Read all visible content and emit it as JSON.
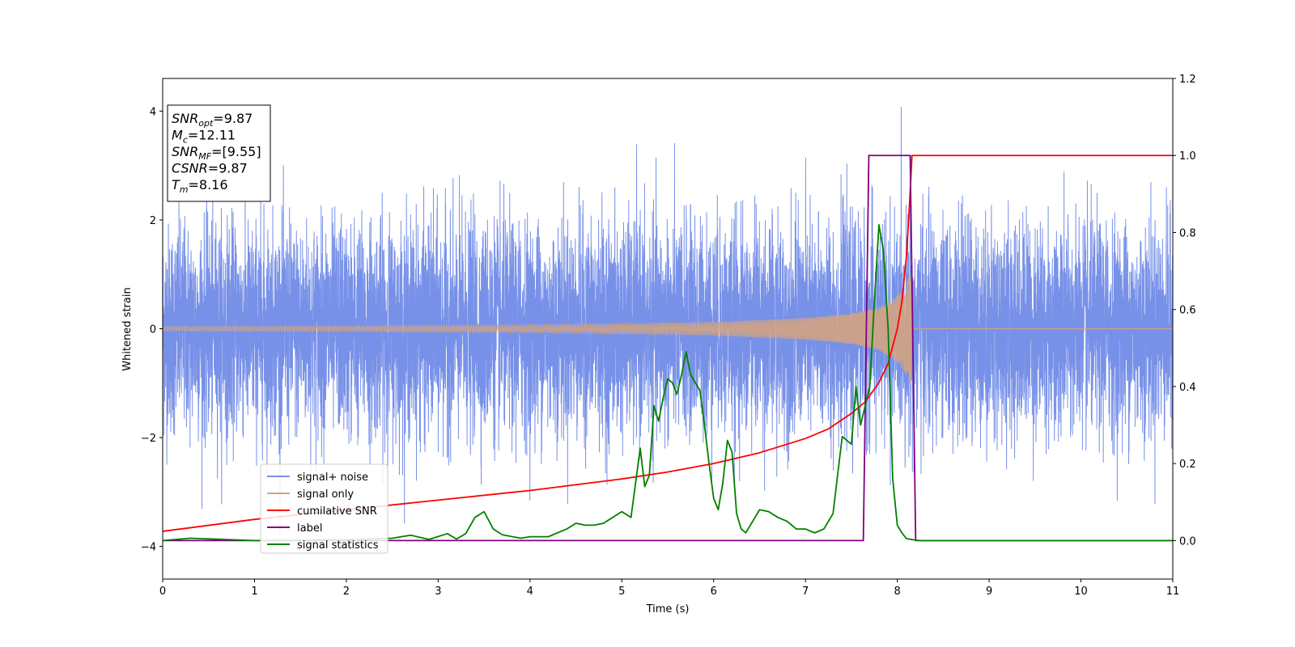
{
  "chart_data": {
    "type": "line",
    "title": "",
    "xlabel": "Time (s)",
    "ylabel": "Whitened strain",
    "ylabel_right": "",
    "xlim": [
      0,
      11
    ],
    "ylim": [
      -4.6,
      4.6
    ],
    "ylim_right": [
      -0.1,
      1.2
    ],
    "xticks": [
      "0",
      "1",
      "2",
      "3",
      "4",
      "5",
      "6",
      "7",
      "8",
      "9",
      "10",
      "11"
    ],
    "yticks_left": [
      "−4",
      "−2",
      "0",
      "2",
      "4"
    ],
    "yticks_right": [
      "0.0",
      "0.2",
      "0.4",
      "0.6",
      "0.8",
      "1.0",
      "1.2"
    ],
    "grid": false,
    "legend_position": "lower-left",
    "stats_box": {
      "lines": [
        {
          "label": "SNR",
          "sub": "opt",
          "value": "=9.87"
        },
        {
          "label": "M",
          "sub": "c",
          "value": "=12.11"
        },
        {
          "label": "SNR",
          "sub": "MF",
          "value": "=[9.55]"
        },
        {
          "label": "CSNR",
          "sub": "",
          "value": "=9.87"
        },
        {
          "label": "T",
          "sub": "m",
          "value": "=8.16"
        }
      ]
    },
    "series": [
      {
        "name": "signal+ noise",
        "axis": "left",
        "color": "#7891e8",
        "kind": "noise",
        "rms": 0.95,
        "peak_min": -4.15,
        "peak_max": 4.18
      },
      {
        "name": "signal only",
        "axis": "left",
        "color": "#d8a47a",
        "kind": "chirp",
        "t_merge": 8.16,
        "amplitudes": [
          [
            0,
            0.04
          ],
          [
            2,
            0.05
          ],
          [
            4,
            0.07
          ],
          [
            5,
            0.09
          ],
          [
            6,
            0.12
          ],
          [
            7,
            0.2
          ],
          [
            7.5,
            0.28
          ],
          [
            7.8,
            0.4
          ],
          [
            8.0,
            0.6
          ],
          [
            8.1,
            0.85
          ],
          [
            8.16,
            1.1
          ]
        ]
      },
      {
        "name": "cumilative SNR",
        "axis": "right",
        "color": "#ff0000",
        "x": [
          0,
          1,
          2,
          3,
          4,
          5,
          5.5,
          6,
          6.5,
          7,
          7.25,
          7.5,
          7.65,
          7.8,
          7.9,
          8.0,
          8.05,
          8.1,
          8.13,
          8.16,
          8.2,
          11
        ],
        "y": [
          0.024,
          0.055,
          0.08,
          0.105,
          0.13,
          0.16,
          0.178,
          0.2,
          0.228,
          0.265,
          0.29,
          0.33,
          0.36,
          0.41,
          0.46,
          0.55,
          0.62,
          0.74,
          0.86,
          1.0,
          1.0,
          1.0
        ]
      },
      {
        "name": "label",
        "axis": "right",
        "color": "#800080",
        "x": [
          0,
          7.63,
          7.69,
          8.14,
          8.2,
          11
        ],
        "y": [
          0,
          0,
          1,
          1,
          0,
          0
        ]
      },
      {
        "name": "signal statistics",
        "axis": "right",
        "color": "#008000",
        "x": [
          0,
          0.3,
          1.0,
          2.0,
          2.5,
          2.7,
          2.9,
          3.1,
          3.2,
          3.3,
          3.4,
          3.5,
          3.6,
          3.7,
          3.9,
          4.0,
          4.2,
          4.4,
          4.5,
          4.6,
          4.7,
          4.8,
          4.9,
          5.0,
          5.1,
          5.2,
          5.25,
          5.3,
          5.35,
          5.4,
          5.45,
          5.5,
          5.55,
          5.6,
          5.65,
          5.7,
          5.75,
          5.8,
          5.85,
          5.9,
          5.95,
          6.0,
          6.05,
          6.1,
          6.15,
          6.2,
          6.25,
          6.3,
          6.35,
          6.4,
          6.5,
          6.6,
          6.7,
          6.8,
          6.9,
          7.0,
          7.1,
          7.2,
          7.3,
          7.4,
          7.5,
          7.55,
          7.6,
          7.65,
          7.7,
          7.75,
          7.8,
          7.85,
          7.9,
          7.95,
          8.0,
          8.05,
          8.1,
          8.15,
          8.2,
          8.25,
          8.3,
          8.4,
          8.6,
          9.0,
          10.0,
          11.0
        ],
        "y": [
          0.0,
          0.006,
          0.0,
          0.002,
          0.006,
          0.014,
          0.003,
          0.018,
          0.004,
          0.018,
          0.06,
          0.075,
          0.03,
          0.015,
          0.006,
          0.01,
          0.01,
          0.03,
          0.045,
          0.04,
          0.04,
          0.045,
          0.06,
          0.075,
          0.06,
          0.24,
          0.14,
          0.17,
          0.35,
          0.31,
          0.37,
          0.42,
          0.41,
          0.38,
          0.43,
          0.49,
          0.43,
          0.41,
          0.39,
          0.3,
          0.2,
          0.11,
          0.08,
          0.15,
          0.26,
          0.23,
          0.07,
          0.03,
          0.02,
          0.04,
          0.08,
          0.075,
          0.06,
          0.05,
          0.03,
          0.03,
          0.02,
          0.03,
          0.07,
          0.27,
          0.25,
          0.4,
          0.3,
          0.35,
          0.4,
          0.62,
          0.82,
          0.75,
          0.55,
          0.16,
          0.04,
          0.02,
          0.005,
          0.003,
          0.001,
          0.0,
          0.0,
          0.0,
          0.0,
          0.0,
          0.0,
          0.0
        ]
      }
    ]
  }
}
